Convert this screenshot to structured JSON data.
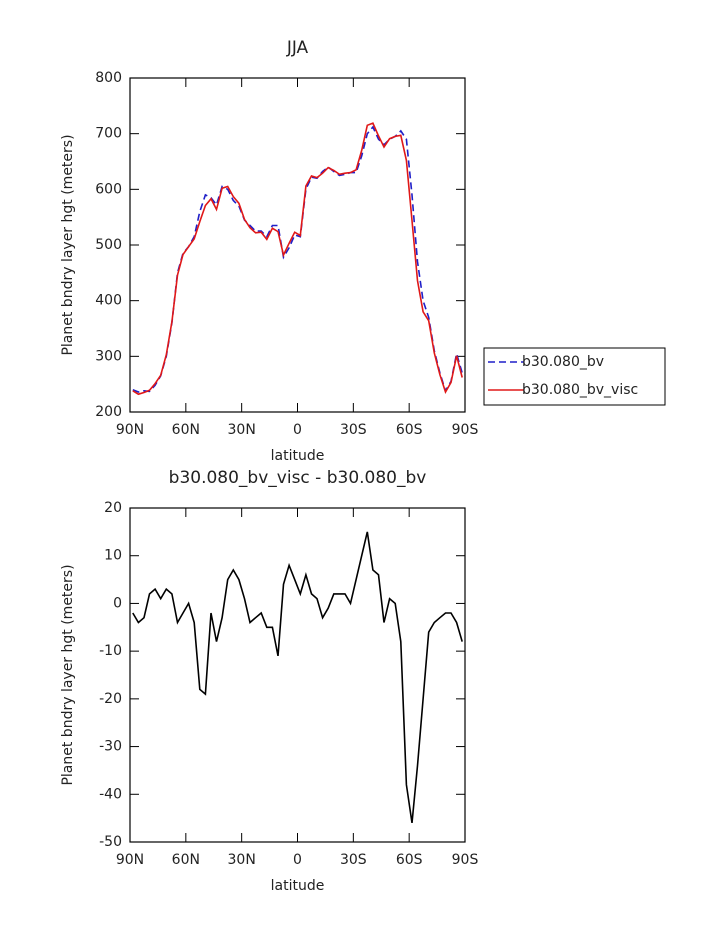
{
  "chart_data": [
    {
      "type": "line",
      "title": "JJA",
      "xlabel": "latitude",
      "ylabel": "Planet bndry layer hgt (meters)",
      "x": [
        88.5,
        85.5,
        82.5,
        79.5,
        76.5,
        73.5,
        70.5,
        67.5,
        64.5,
        61.5,
        58.5,
        55.5,
        52.5,
        49.5,
        46.5,
        43.5,
        40.5,
        37.5,
        34.5,
        31.5,
        28.5,
        25.5,
        22.5,
        19.5,
        16.5,
        13.5,
        10.5,
        7.5,
        4.5,
        1.5,
        -1.5,
        -4.5,
        -7.5,
        -10.5,
        -13.5,
        -16.5,
        -19.5,
        -22.5,
        -25.5,
        -28.5,
        -31.5,
        -34.5,
        -37.5,
        -40.5,
        -43.5,
        -46.5,
        -49.5,
        -52.5,
        -55.5,
        -58.5,
        -61.5,
        -64.5,
        -67.5,
        -70.5,
        -73.5,
        -76.5,
        -79.5,
        -82.5,
        -85.5,
        -88.5
      ],
      "series": [
        {
          "name": "b30.080_bv",
          "color": "#1f1fc8",
          "dashed": true,
          "values": [
            240,
            236,
            238,
            237,
            248,
            265,
            300,
            360,
            450,
            485,
            497,
            515,
            560,
            590,
            585,
            572,
            605,
            600,
            580,
            570,
            545,
            535,
            525,
            525,
            515,
            535,
            535,
            478,
            495,
            518,
            515,
            600,
            622,
            620,
            632,
            640,
            632,
            625,
            627,
            630,
            630,
            660,
            700,
            712,
            690,
            680,
            690,
            695,
            705,
            690,
            590,
            470,
            400,
            370,
            310,
            270,
            238,
            255,
            305,
            270
          ]
        },
        {
          "name": "b30.080_bv_visc",
          "color": "#e01818",
          "dashed": false,
          "values": [
            238,
            232,
            235,
            239,
            251,
            266,
            303,
            362,
            446,
            483,
            497,
            511,
            542,
            571,
            583,
            564,
            602,
            605,
            587,
            575,
            546,
            531,
            522,
            523,
            510,
            530,
            524,
            482,
            503,
            523,
            517,
            606,
            624,
            621,
            629,
            639,
            634,
            627,
            629,
            630,
            635,
            670,
            715,
            719,
            696,
            676,
            691,
            695,
            697,
            652,
            544,
            436,
            380,
            364,
            306,
            267,
            236,
            253,
            301,
            262
          ]
        }
      ],
      "xlim": [
        90,
        -90
      ],
      "xticks": [
        {
          "value": 90,
          "label": "90N"
        },
        {
          "value": 60,
          "label": "60N"
        },
        {
          "value": 30,
          "label": "30N"
        },
        0,
        {
          "value": -30,
          "label": "30S"
        },
        {
          "value": -60,
          "label": "60S"
        },
        {
          "value": -90,
          "label": "90S"
        }
      ],
      "ylim": [
        200,
        800
      ],
      "yticks": [
        200,
        300,
        400,
        500,
        600,
        700,
        800
      ],
      "legend": "right"
    },
    {
      "type": "line",
      "title": "b30.080_bv_visc - b30.080_bv",
      "xlabel": "latitude",
      "ylabel": "Planet bndry layer hgt (meters)",
      "x": [
        88.5,
        85.5,
        82.5,
        79.5,
        76.5,
        73.5,
        70.5,
        67.5,
        64.5,
        61.5,
        58.5,
        55.5,
        52.5,
        49.5,
        46.5,
        43.5,
        40.5,
        37.5,
        34.5,
        31.5,
        28.5,
        25.5,
        22.5,
        19.5,
        16.5,
        13.5,
        10.5,
        7.5,
        4.5,
        1.5,
        -1.5,
        -4.5,
        -7.5,
        -10.5,
        -13.5,
        -16.5,
        -19.5,
        -22.5,
        -25.5,
        -28.5,
        -31.5,
        -34.5,
        -37.5,
        -40.5,
        -43.5,
        -46.5,
        -49.5,
        -52.5,
        -55.5,
        -58.5,
        -61.5,
        -64.5,
        -67.5,
        -70.5,
        -73.5,
        -76.5,
        -79.5,
        -82.5,
        -85.5,
        -88.5
      ],
      "values": [
        -2,
        -4,
        -3,
        2,
        3,
        1,
        3,
        2,
        -4,
        -2,
        0,
        -4,
        -18,
        -19,
        -2,
        -8,
        -3,
        5,
        7,
        5,
        1,
        -4,
        -3,
        -2,
        -5,
        -5,
        -11,
        4,
        8,
        5,
        2,
        6,
        2,
        1,
        -3,
        -1,
        2,
        2,
        2,
        0,
        5,
        10,
        15,
        7,
        6,
        -4,
        1,
        0,
        -8,
        -38,
        -46,
        -34,
        -20,
        -6,
        -4,
        -3,
        -2,
        -2,
        -4,
        -8
      ],
      "color": "#000000",
      "xlim": [
        90,
        -90
      ],
      "xticks": [
        {
          "value": 90,
          "label": "90N"
        },
        {
          "value": 60,
          "label": "60N"
        },
        {
          "value": 30,
          "label": "30N"
        },
        0,
        {
          "value": -30,
          "label": "30S"
        },
        {
          "value": -60,
          "label": "60S"
        },
        {
          "value": -90,
          "label": "90S"
        }
      ],
      "ylim": [
        -50,
        20
      ],
      "yticks": [
        -50,
        -40,
        -30,
        -20,
        -10,
        0,
        10,
        20
      ]
    }
  ]
}
